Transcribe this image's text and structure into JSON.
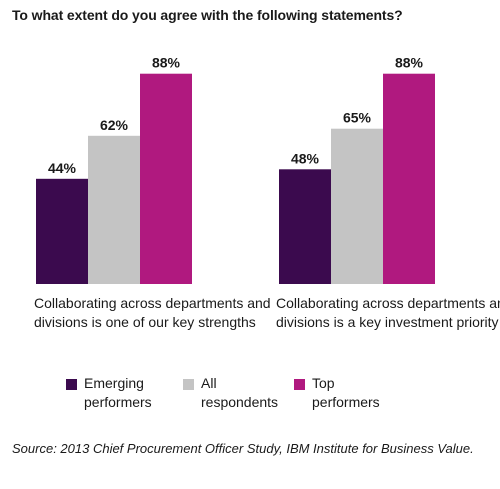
{
  "title": "To what extent do you agree with the following statements?",
  "chart_data": {
    "type": "bar",
    "title": "To what extent do you agree with the following statements?",
    "categories": [
      "Collaborating across departments and divisions is one of our key strengths",
      "Collaborating across departments and divisions is a key investment priority"
    ],
    "series": [
      {
        "name": "Emerging performers",
        "color": "#3b0a4e",
        "values": [
          44,
          48
        ],
        "labels": [
          "44%",
          "48%"
        ]
      },
      {
        "name": "All respondents",
        "color": "#c4c4c4",
        "values": [
          62,
          65
        ],
        "labels": [
          "62%",
          "65%"
        ]
      },
      {
        "name": "Top performers",
        "color": "#b0197f",
        "values": [
          88,
          88
        ],
        "labels": [
          "88%",
          "88%"
        ]
      }
    ],
    "ylim": [
      0,
      100
    ],
    "unit": "%",
    "grid": false,
    "legend_position": "bottom"
  },
  "legend": [
    {
      "line1": "Emerging",
      "line2": "performers",
      "color": "#3b0a4e"
    },
    {
      "line1": "All",
      "line2": "respondents",
      "color": "#c4c4c4"
    },
    {
      "line1": "Top",
      "line2": "performers",
      "color": "#b0197f"
    }
  ],
  "source": "Source: 2013 Chief Procurement Officer Study, IBM Institute for Business Value."
}
